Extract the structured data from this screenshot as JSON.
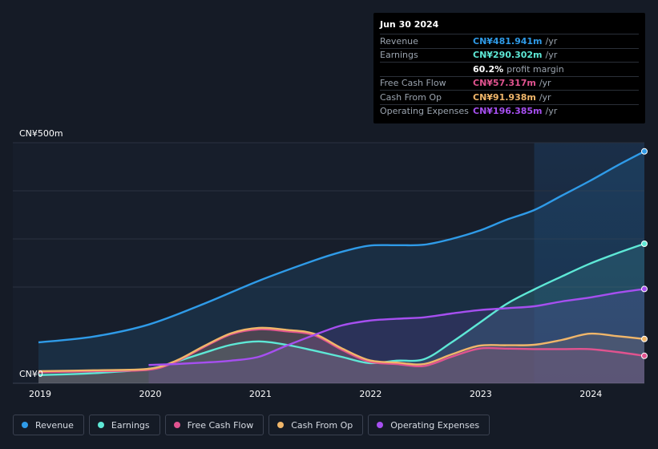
{
  "tooltip": {
    "date": "Jun 30 2024",
    "rows": [
      {
        "label": "Revenue",
        "value": "CN¥481.941m",
        "unit": "/yr",
        "color": "#2f9be8"
      },
      {
        "label": "Earnings",
        "value": "CN¥290.302m",
        "unit": "/yr",
        "color": "#5ee8d6"
      },
      {
        "label": "",
        "value": "60.2%",
        "unit": "profit margin",
        "color": "#ffffff"
      },
      {
        "label": "Free Cash Flow",
        "value": "CN¥57.317m",
        "unit": "/yr",
        "color": "#e0538f"
      },
      {
        "label": "Cash From Op",
        "value": "CN¥91.938m",
        "unit": "/yr",
        "color": "#f0b66a"
      },
      {
        "label": "Operating Expenses",
        "value": "CN¥196.385m",
        "unit": "/yr",
        "color": "#a64ff0"
      }
    ]
  },
  "chart_data": {
    "type": "area",
    "ylabel_top": "CN¥500m",
    "ylabel_bottom": "CN¥0",
    "ylim": [
      0,
      500
    ],
    "xlim": [
      2019.0,
      2024.5
    ],
    "x_ticks": [
      "2019",
      "2020",
      "2021",
      "2022",
      "2023",
      "2024"
    ],
    "forecast_start": 2023.5,
    "series": [
      {
        "name": "Revenue",
        "color": "#2f9be8",
        "x": [
          2019.0,
          2019.5,
          2020.0,
          2020.5,
          2021.0,
          2021.5,
          2021.75,
          2022.0,
          2022.25,
          2022.5,
          2022.75,
          2023.0,
          2023.25,
          2023.5,
          2023.75,
          2024.0,
          2024.25,
          2024.5
        ],
        "y": [
          85,
          97,
          122,
          165,
          213,
          255,
          273,
          286,
          287,
          288,
          300,
          317,
          340,
          360,
          390,
          420,
          452,
          482
        ]
      },
      {
        "name": "Earnings",
        "color": "#5ee8d6",
        "x": [
          2019.0,
          2019.5,
          2020.0,
          2020.25,
          2020.5,
          2020.75,
          2021.0,
          2021.25,
          2021.5,
          2021.75,
          2022.0,
          2022.25,
          2022.5,
          2022.75,
          2023.0,
          2023.25,
          2023.5,
          2023.75,
          2024.0,
          2024.25,
          2024.5
        ],
        "y": [
          17,
          21,
          30,
          45,
          63,
          80,
          87,
          80,
          68,
          55,
          42,
          47,
          50,
          85,
          125,
          165,
          195,
          222,
          248,
          270,
          290
        ]
      },
      {
        "name": "Free Cash Flow",
        "color": "#e0538f",
        "x": [
          2019.0,
          2019.5,
          2020.0,
          2020.25,
          2020.5,
          2020.75,
          2021.0,
          2021.25,
          2021.5,
          2021.75,
          2022.0,
          2022.25,
          2022.5,
          2022.75,
          2023.0,
          2023.25,
          2023.5,
          2023.75,
          2024.0,
          2024.25,
          2024.5
        ],
        "y": [
          23,
          25,
          28,
          45,
          75,
          102,
          112,
          108,
          100,
          70,
          45,
          40,
          36,
          55,
          72,
          72,
          71,
          71,
          71,
          65,
          57
        ]
      },
      {
        "name": "Cash From Op",
        "color": "#f0b66a",
        "x": [
          2019.0,
          2019.5,
          2020.0,
          2020.25,
          2020.5,
          2020.75,
          2021.0,
          2021.25,
          2021.5,
          2021.75,
          2022.0,
          2022.25,
          2022.5,
          2022.75,
          2023.0,
          2023.25,
          2023.5,
          2023.75,
          2024.0,
          2024.25,
          2024.5
        ],
        "y": [
          25,
          27,
          30,
          47,
          77,
          104,
          115,
          111,
          103,
          73,
          48,
          43,
          40,
          60,
          78,
          79,
          80,
          90,
          103,
          98,
          92
        ]
      },
      {
        "name": "Operating Expenses",
        "color": "#a64ff0",
        "x": [
          2020.0,
          2020.25,
          2020.5,
          2020.75,
          2021.0,
          2021.25,
          2021.5,
          2021.75,
          2022.0,
          2022.25,
          2022.5,
          2022.75,
          2023.0,
          2023.25,
          2023.5,
          2023.75,
          2024.0,
          2024.25,
          2024.5
        ],
        "y": [
          38,
          40,
          43,
          47,
          55,
          78,
          100,
          120,
          130,
          134,
          137,
          145,
          152,
          156,
          160,
          170,
          178,
          188,
          196
        ]
      }
    ]
  },
  "legend": [
    {
      "label": "Revenue",
      "color": "#2f9be8"
    },
    {
      "label": "Earnings",
      "color": "#5ee8d6"
    },
    {
      "label": "Free Cash Flow",
      "color": "#e0538f"
    },
    {
      "label": "Cash From Op",
      "color": "#f0b66a"
    },
    {
      "label": "Operating Expenses",
      "color": "#a64ff0"
    }
  ]
}
